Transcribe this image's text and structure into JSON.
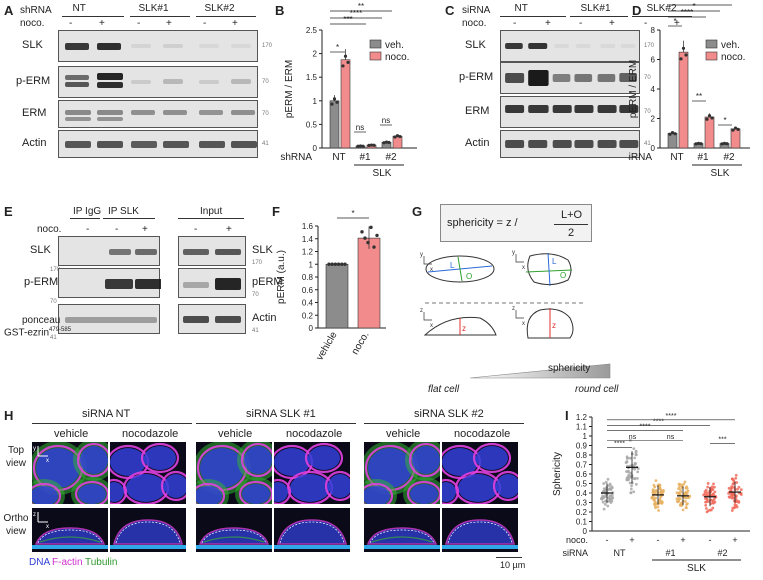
{
  "panels": {
    "A": "A",
    "B": "B",
    "C": "C",
    "D": "D",
    "E": "E",
    "F": "F",
    "G": "G",
    "H": "H",
    "I": "I"
  },
  "panelA": {
    "row_shrna": "shRNA",
    "row_noco": "noco.",
    "groups": [
      "NT",
      "SLK#1",
      "SLK#2"
    ],
    "noco_marks": [
      "-",
      "+",
      "-",
      "+",
      "-",
      "+"
    ],
    "blots": [
      "SLK",
      "p-ERM",
      "ERM",
      "Actin"
    ],
    "mw": [
      "170",
      "70",
      "70",
      "41"
    ]
  },
  "panelC": {
    "row_sirna": "siRNA",
    "row_noco": "noco.",
    "groups": [
      "NT",
      "SLK#1",
      "SLK#2"
    ],
    "noco_marks": [
      "-",
      "+",
      "-",
      "+",
      "-",
      "+"
    ],
    "blots": [
      "SLK",
      "p-ERM",
      "ERM",
      "Actin"
    ],
    "mw": [
      "170",
      "70",
      "70",
      "41"
    ]
  },
  "panelE": {
    "noco": "noco.",
    "headers": [
      "IP IgG",
      "IP SLK",
      "Input"
    ],
    "marks": [
      "-",
      "-",
      "+",
      "-",
      "+"
    ],
    "left_labels": [
      "SLK",
      "p-ERM",
      "ponceau"
    ],
    "left_sub": "GST-ezrin",
    "left_sub_sup": "479-585",
    "left_mw": [
      "170",
      "70",
      "41"
    ],
    "right_labels": [
      "SLK",
      "pERM",
      "Actin"
    ],
    "right_mw": [
      "170",
      "70",
      "41"
    ]
  },
  "panelG": {
    "formula": "sphericity = z / ",
    "numerator": "L+O",
    "denominator": "2",
    "gradient_label": "sphericity",
    "flat": "flat cell",
    "round": "round cell",
    "axes": [
      "y",
      "x",
      "z",
      "x",
      "y",
      "x",
      "z",
      "x"
    ],
    "letters": [
      "L",
      "O",
      "L",
      "O",
      "z",
      "z"
    ]
  },
  "panelH": {
    "groups": [
      "siRNA NT",
      "siRNA SLK #1",
      "siRNA SLK #2"
    ],
    "conditions": [
      "vehicle",
      "nocodazole",
      "vehicle",
      "nocodazole",
      "vehicle",
      "nocodazole"
    ],
    "rows": [
      "Top view",
      "Ortho view"
    ],
    "legend": {
      "dna": "DNA",
      "factin": "F-actin",
      "tubulin": "Tubulin"
    },
    "scale": "10 µm",
    "axes": [
      "y",
      "x",
      "z",
      "x"
    ]
  },
  "colors": {
    "veh": "#8c8c8c",
    "noco": "#f28c8c",
    "dna": "#3340d8",
    "factin": "#e040e0",
    "tubulin": "#33b033"
  },
  "chart_data": [
    {
      "id": "B",
      "type": "bar",
      "ylabel": "pERM / ERM",
      "ylim": [
        0,
        2.5
      ],
      "yticks": [
        0,
        0.5,
        1,
        1.5,
        2,
        2.5
      ],
      "categories": [
        "NT",
        "#1",
        "#2"
      ],
      "group_label": "SLK",
      "row_label": "shRNA",
      "legend": [
        "veh.",
        "noco."
      ],
      "legend_position": "top-right",
      "series": [
        {
          "name": "veh.",
          "values": [
            1.0,
            0.04,
            0.12
          ]
        },
        {
          "name": "noco.",
          "values": [
            1.87,
            0.06,
            0.25
          ]
        }
      ],
      "significance": [
        "*",
        "ns",
        "ns",
        "***",
        "****",
        "**"
      ]
    },
    {
      "id": "D",
      "type": "bar",
      "ylabel": "pERM / ERM",
      "ylim": [
        0,
        8
      ],
      "yticks": [
        0,
        2,
        4,
        6,
        8
      ],
      "categories": [
        "NT",
        "#1",
        "#2"
      ],
      "group_label": "SLK",
      "row_label": "siRNA",
      "legend": [
        "veh.",
        "noco."
      ],
      "legend_position": "top-right",
      "series": [
        {
          "name": "veh.",
          "values": [
            1.0,
            0.3,
            0.3
          ]
        },
        {
          "name": "noco.",
          "values": [
            6.5,
            2.1,
            1.3
          ]
        }
      ],
      "significance": [
        "*",
        "**",
        "*",
        "****",
        "*",
        "**"
      ]
    },
    {
      "id": "F",
      "type": "bar",
      "ylabel": "pERM (a.u.)",
      "ylim": [
        0,
        1.6
      ],
      "yticks": [
        0,
        0.2,
        0.4,
        0.6,
        0.8,
        1,
        1.2,
        1.4,
        1.6
      ],
      "categories": [
        "vehicle",
        "noco."
      ],
      "values": [
        1.0,
        1.41
      ],
      "significance": [
        "*"
      ]
    },
    {
      "id": "I",
      "type": "scatter",
      "ylabel": "Sphericity",
      "ylim": [
        0,
        1.2
      ],
      "yticks": [
        0,
        0.1,
        0.2,
        0.3,
        0.4,
        0.5,
        0.6,
        0.7,
        0.8,
        0.9,
        1,
        1.1,
        1.2
      ],
      "categories": [
        "NT -",
        "NT +",
        "#1 -",
        "#1 +",
        "#2 -",
        "#2 +"
      ],
      "means": [
        0.4,
        0.67,
        0.38,
        0.37,
        0.36,
        0.41
      ],
      "noco_marks": [
        "-",
        "+",
        "-",
        "+",
        "-",
        "+"
      ],
      "groups": [
        "NT",
        "#1",
        "#2"
      ],
      "group_label": "SLK",
      "row_noco": "noco.",
      "row_sirna": "siRNA",
      "significance": [
        "****",
        "ns",
        "ns",
        "****",
        "****",
        "***",
        "****",
        "***"
      ]
    }
  ]
}
